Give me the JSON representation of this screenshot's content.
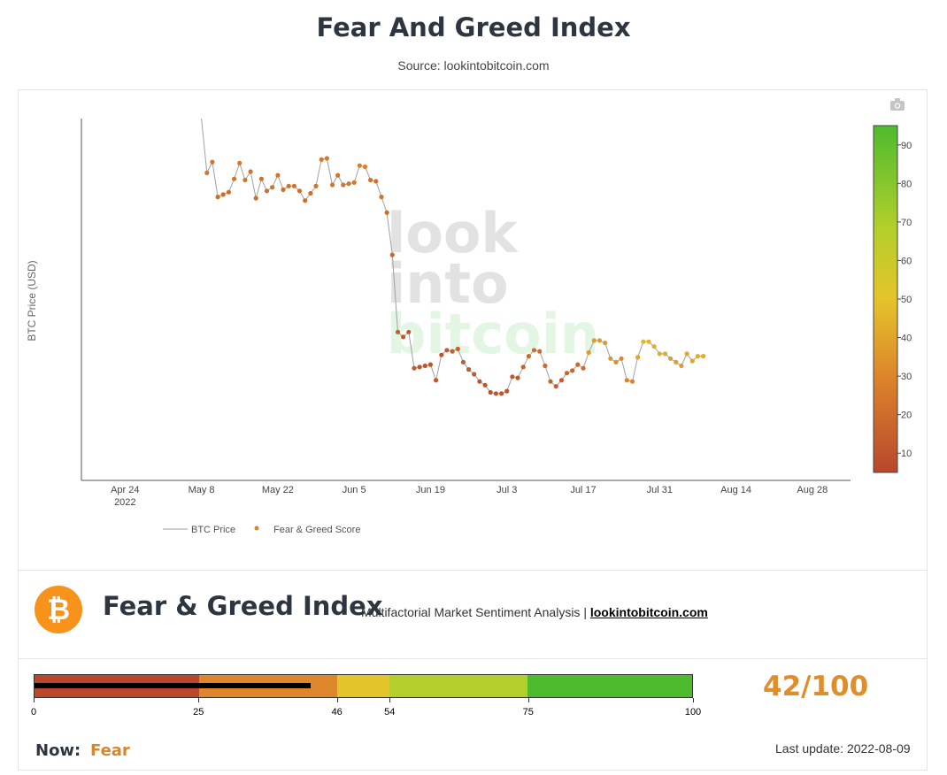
{
  "header": {
    "title": "Fear And Greed Index",
    "subtitle": "Source: lookintobitcoin.com"
  },
  "chart_data": {
    "type": "line",
    "ylabel": "BTC Price (USD)",
    "x_ticks": [
      {
        "label": "Apr 24",
        "sub": "2022",
        "date": "2022-04-24"
      },
      {
        "label": "May 8",
        "sub": "",
        "date": "2022-05-08"
      },
      {
        "label": "May 22",
        "sub": "",
        "date": "2022-05-22"
      },
      {
        "label": "Jun 5",
        "sub": "",
        "date": "2022-06-05"
      },
      {
        "label": "Jun 19",
        "sub": "",
        "date": "2022-06-19"
      },
      {
        "label": "Jul 3",
        "sub": "",
        "date": "2022-07-03"
      },
      {
        "label": "Jul 17",
        "sub": "",
        "date": "2022-07-17"
      },
      {
        "label": "Jul 31",
        "sub": "",
        "date": "2022-07-31"
      },
      {
        "label": "Aug 14",
        "sub": "",
        "date": "2022-08-14"
      },
      {
        "label": "Aug 28",
        "sub": "",
        "date": "2022-08-28"
      }
    ],
    "xlim": [
      "2022-04-16",
      "2022-09-04"
    ],
    "ylim": [
      14000,
      44000
    ],
    "watermark": [
      "look",
      "into",
      "bitcoin"
    ],
    "colorbar": {
      "min": 5,
      "max": 95,
      "ticks": [
        10,
        20,
        30,
        40,
        50,
        60,
        70,
        80,
        90
      ]
    },
    "legend": {
      "line": "BTC Price",
      "points": "Fear & Greed Score"
    },
    "series": [
      {
        "name": "BTC Price",
        "start_date": "2022-05-09",
        "line_start": {
          "date": "2022-05-08",
          "price": 44000
        },
        "prices": [
          39500,
          40400,
          37500,
          37700,
          37900,
          39000,
          40300,
          38900,
          39600,
          37400,
          39000,
          38000,
          38300,
          39300,
          38100,
          38400,
          38400,
          38000,
          37200,
          37800,
          38400,
          40600,
          40700,
          38500,
          39300,
          38500,
          38600,
          38700,
          40100,
          40000,
          38900,
          38800,
          37500,
          36200,
          32700,
          26300,
          25900,
          26300,
          23300,
          23400,
          23500,
          23600,
          22300,
          24400,
          24800,
          24700,
          24900,
          23800,
          23200,
          22800,
          22200,
          21900,
          21300,
          21200,
          21200,
          21400,
          22600,
          22500,
          23400,
          24300,
          24800,
          24700,
          23500,
          22200,
          21800,
          22300,
          22900,
          23100,
          23600,
          23300,
          24600,
          25600,
          25600,
          25400,
          24100,
          23800,
          24100,
          22300,
          22200,
          24200,
          25500,
          25500,
          25100,
          24500,
          24500,
          24100,
          23800,
          23500,
          24500,
          23900,
          24300,
          24300
        ]
      },
      {
        "name": "Fear & Greed Score",
        "scores": [
          23,
          24,
          20,
          20,
          20,
          23,
          24,
          23,
          22,
          20,
          21,
          21,
          22,
          23,
          21,
          22,
          22,
          21,
          20,
          21,
          22,
          25,
          25,
          24,
          23,
          23,
          24,
          24,
          27,
          27,
          22,
          22,
          22,
          20,
          18,
          14,
          12,
          12,
          12,
          10,
          10,
          10,
          11,
          10,
          13,
          14,
          15,
          13,
          12,
          12,
          11,
          10,
          10,
          10,
          10,
          10,
          12,
          12,
          15,
          18,
          20,
          20,
          18,
          16,
          13,
          13,
          17,
          18,
          18,
          20,
          35,
          37,
          37,
          36,
          35,
          33,
          30,
          29,
          29,
          40,
          45,
          45,
          43,
          42,
          42,
          38,
          38,
          37,
          41,
          40,
          42,
          42
        ]
      }
    ]
  },
  "info": {
    "logo_symbol": "₿",
    "title": "Fear & Greed Index",
    "subtitle": "Multifactorial Market Sentiment Analysis | ",
    "link": "lookintobitcoin.com"
  },
  "gauge": {
    "value": 42,
    "score_text": "42/100",
    "segments": [
      {
        "from": 0,
        "to": 25,
        "color": "#b8472c"
      },
      {
        "from": 25,
        "to": 46,
        "color": "#dd862b"
      },
      {
        "from": 46,
        "to": 54,
        "color": "#e4c42b"
      },
      {
        "from": 54,
        "to": 75,
        "color": "#b4cf2b"
      },
      {
        "from": 75,
        "to": 100,
        "color": "#4ebb2e"
      }
    ],
    "ticks": [
      "0",
      "25",
      "46",
      "54",
      "75",
      "100"
    ]
  },
  "status": {
    "now_label": "Now:",
    "now_value": "Fear",
    "last_update": "Last update: 2022-08-09"
  }
}
